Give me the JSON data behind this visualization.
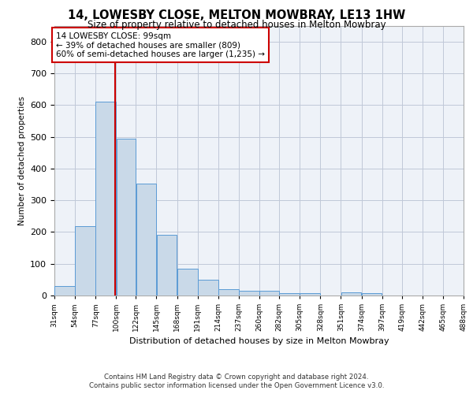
{
  "title": "14, LOWESBY CLOSE, MELTON MOWBRAY, LE13 1HW",
  "subtitle": "Size of property relative to detached houses in Melton Mowbray",
  "xlabel": "Distribution of detached houses by size in Melton Mowbray",
  "ylabel": "Number of detached properties",
  "bar_color": "#c9d9e8",
  "bar_edge_color": "#5b9bd5",
  "grid_color": "#c0c8d8",
  "background_color": "#eef2f8",
  "annotation_text": "14 LOWESBY CLOSE: 99sqm\n← 39% of detached houses are smaller (809)\n60% of semi-detached houses are larger (1,235) →",
  "annotation_box_color": "#ffffff",
  "annotation_box_edge": "#cc0000",
  "vline_color": "#cc0000",
  "vline_x": 99,
  "bin_edges": [
    31,
    54,
    77,
    100,
    122,
    145,
    168,
    191,
    214,
    237,
    260,
    282,
    305,
    328,
    351,
    374,
    397,
    419,
    442,
    465,
    488
  ],
  "bar_heights": [
    30,
    218,
    610,
    495,
    352,
    190,
    84,
    50,
    20,
    16,
    15,
    8,
    8,
    0,
    10,
    7,
    0,
    0,
    0,
    0
  ],
  "tick_labels": [
    "31sqm",
    "54sqm",
    "77sqm",
    "100sqm",
    "122sqm",
    "145sqm",
    "168sqm",
    "191sqm",
    "214sqm",
    "237sqm",
    "260sqm",
    "282sqm",
    "305sqm",
    "328sqm",
    "351sqm",
    "374sqm",
    "397sqm",
    "419sqm",
    "442sqm",
    "465sqm",
    "488sqm"
  ],
  "ylim": [
    0,
    850
  ],
  "yticks": [
    0,
    100,
    200,
    300,
    400,
    500,
    600,
    700,
    800
  ],
  "footer_line1": "Contains HM Land Registry data © Crown copyright and database right 2024.",
  "footer_line2": "Contains public sector information licensed under the Open Government Licence v3.0."
}
